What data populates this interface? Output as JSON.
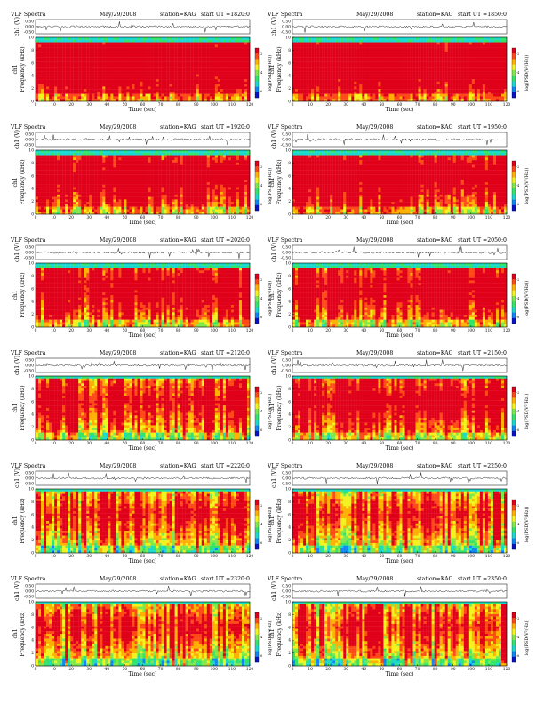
{
  "colors": {
    "spectrogram_scale": [
      "#0a12c8",
      "#0e86f5",
      "#19d9cf",
      "#34e36a",
      "#7fe84a",
      "#f2f21e",
      "#ffb000",
      "#ff4a18",
      "#e0001a"
    ],
    "trace": "#222222",
    "axes": "#000000"
  },
  "chart_data": [
    {
      "type": "heatmap",
      "header": {
        "left": "VLF Spectra",
        "date": "May/29/2008",
        "station": "station=KAG",
        "start": "start UT =1820:0"
      },
      "y_top_label": "ch1 (V)",
      "y_top_ticks": [
        "0.50",
        "0.00",
        "-0.50"
      ],
      "ylabel_prefix": "ch1",
      "ylabel": "Frequency (kHz)",
      "y_ticks": [
        "0",
        "2",
        "4",
        "6",
        "8",
        "10"
      ],
      "ylim": [
        0,
        10
      ],
      "xlabel": "Time (sec)",
      "x_ticks": [
        "0",
        "10",
        "20",
        "30",
        "40",
        "50",
        "60",
        "70",
        "80",
        "90",
        "100",
        "110",
        "120"
      ],
      "xlim": [
        0,
        120
      ],
      "colorbar_label": "log(PSD(V²/Hz))",
      "colorbar_ticks": [
        "-2",
        "-4",
        "-6"
      ],
      "activity": 0.85,
      "upper_cutoff_khz": 9.3
    },
    {
      "type": "heatmap",
      "header": {
        "left": "VLF Spectra",
        "date": "May/29/2008",
        "station": "station=KAG",
        "start": "start UT =1850:0"
      },
      "y_top_label": "ch1 (V)",
      "y_top_ticks": [
        "0.50",
        "0.00",
        "-0.50"
      ],
      "ylabel_prefix": "ch1",
      "ylabel": "Frequency (kHz)",
      "y_ticks": [
        "0",
        "2",
        "4",
        "6",
        "8",
        "10"
      ],
      "ylim": [
        0,
        10
      ],
      "xlabel": "Time (sec)",
      "x_ticks": [
        "0",
        "10",
        "20",
        "30",
        "40",
        "50",
        "60",
        "70",
        "80",
        "90",
        "100",
        "110",
        "120"
      ],
      "xlim": [
        0,
        120
      ],
      "colorbar_label": "log(PSD(V²/Hz))",
      "colorbar_ticks": [
        "-2",
        "-4",
        "-6"
      ],
      "activity": 0.85,
      "upper_cutoff_khz": 9.3
    },
    {
      "type": "heatmap",
      "header": {
        "left": "VLF Spectra",
        "date": "May/29/2008",
        "station": "station=KAG",
        "start": "start UT =1920:0"
      },
      "y_top_label": "ch1 (V)",
      "y_top_ticks": [
        "0.50",
        "0.00",
        "-0.50"
      ],
      "ylabel_prefix": "ch1",
      "ylabel": "Frequency (kHz)",
      "y_ticks": [
        "0",
        "2",
        "4",
        "6",
        "8",
        "10"
      ],
      "ylim": [
        0,
        10
      ],
      "xlabel": "Time (sec)",
      "x_ticks": [
        "0",
        "10",
        "20",
        "30",
        "40",
        "50",
        "60",
        "70",
        "80",
        "90",
        "100",
        "110",
        "120"
      ],
      "xlim": [
        0,
        120
      ],
      "colorbar_label": "log(PSD(V²/Hz))",
      "colorbar_ticks": [
        "-2",
        "-4",
        "-6"
      ],
      "activity": 0.72,
      "upper_cutoff_khz": 9.3
    },
    {
      "type": "heatmap",
      "header": {
        "left": "VLF Spectra",
        "date": "May/29/2008",
        "station": "station=KAG",
        "start": "start UT =1950:0"
      },
      "y_top_label": "ch1 (V)",
      "y_top_ticks": [
        "0.50",
        "0.00",
        "-0.50"
      ],
      "ylabel_prefix": "ch1",
      "ylabel": "Frequency (kHz)",
      "y_ticks": [
        "0",
        "2",
        "4",
        "6",
        "8",
        "10"
      ],
      "ylim": [
        0,
        10
      ],
      "xlabel": "Time (sec)",
      "x_ticks": [
        "0",
        "10",
        "20",
        "30",
        "40",
        "50",
        "60",
        "70",
        "80",
        "90",
        "100",
        "110",
        "120"
      ],
      "xlim": [
        0,
        120
      ],
      "colorbar_label": "log(PSD(V²/Hz))",
      "colorbar_ticks": [
        "-2",
        "-4",
        "-6"
      ],
      "activity": 0.72,
      "upper_cutoff_khz": 9.3
    },
    {
      "type": "heatmap",
      "header": {
        "left": "VLF Spectra",
        "date": "May/29/2008",
        "station": "station=KAG",
        "start": "start UT =2020:0"
      },
      "y_top_label": "ch1 (V)",
      "y_top_ticks": [
        "0.50",
        "0.00",
        "-0.50"
      ],
      "ylabel_prefix": "ch1",
      "ylabel": "Frequency (kHz)",
      "y_ticks": [
        "0",
        "2",
        "4",
        "6",
        "8",
        "10"
      ],
      "ylim": [
        0,
        10
      ],
      "xlabel": "Time (sec)",
      "x_ticks": [
        "0",
        "10",
        "20",
        "30",
        "40",
        "50",
        "60",
        "70",
        "80",
        "90",
        "100",
        "110",
        "120"
      ],
      "xlim": [
        0,
        120
      ],
      "colorbar_label": "log(PSD(V²/Hz))",
      "colorbar_ticks": [
        "-2",
        "-4",
        "-6"
      ],
      "activity": 0.62,
      "upper_cutoff_khz": 9.3
    },
    {
      "type": "heatmap",
      "header": {
        "left": "VLF Spectra",
        "date": "May/29/2008",
        "station": "station=KAG",
        "start": "start UT =2050:0"
      },
      "y_top_label": "ch1 (V)",
      "y_top_ticks": [
        "0.50",
        "0.00",
        "-0.50"
      ],
      "ylabel_prefix": "ch1",
      "ylabel": "Frequency (kHz)",
      "y_ticks": [
        "0",
        "2",
        "4",
        "6",
        "8",
        "10"
      ],
      "ylim": [
        0,
        10
      ],
      "xlabel": "Time (sec)",
      "x_ticks": [
        "0",
        "10",
        "20",
        "30",
        "40",
        "50",
        "60",
        "70",
        "80",
        "90",
        "100",
        "110",
        "120"
      ],
      "xlim": [
        0,
        120
      ],
      "colorbar_label": "log(PSD(V²/Hz))",
      "colorbar_ticks": [
        "-2",
        "-4",
        "-6"
      ],
      "activity": 0.62,
      "upper_cutoff_khz": 9.3
    },
    {
      "type": "heatmap",
      "header": {
        "left": "VLF Spectra",
        "date": "May/29/2008",
        "station": "station=KAG",
        "start": "start UT =2120:0"
      },
      "y_top_label": "ch1 (V)",
      "y_top_ticks": [
        "0.50",
        "0.00",
        "-0.50"
      ],
      "ylabel_prefix": "ch1",
      "ylabel": "Frequency (kHz)",
      "y_ticks": [
        "0",
        "2",
        "4",
        "6",
        "8",
        "10"
      ],
      "ylim": [
        0,
        10
      ],
      "xlabel": "Time (sec)",
      "x_ticks": [
        "0",
        "10",
        "20",
        "30",
        "40",
        "50",
        "60",
        "70",
        "80",
        "90",
        "100",
        "110",
        "120"
      ],
      "xlim": [
        0,
        120
      ],
      "colorbar_label": "log(PSD(V²/Hz))",
      "colorbar_ticks": [
        "-2",
        "-4",
        "-6"
      ],
      "activity": 0.5,
      "upper_cutoff_khz": 9.5
    },
    {
      "type": "heatmap",
      "header": {
        "left": "VLF Spectra",
        "date": "May/29/2008",
        "station": "station=KAG",
        "start": "start UT =2150:0"
      },
      "y_top_label": "ch1 (V)",
      "y_top_ticks": [
        "0.50",
        "0.00",
        "-0.50"
      ],
      "ylabel_prefix": "ch1",
      "ylabel": "Frequency (kHz)",
      "y_ticks": [
        "0",
        "2",
        "4",
        "6",
        "8",
        "10"
      ],
      "ylim": [
        0,
        10
      ],
      "xlabel": "Time (sec)",
      "x_ticks": [
        "0",
        "10",
        "20",
        "30",
        "40",
        "50",
        "60",
        "70",
        "80",
        "90",
        "100",
        "110",
        "120"
      ],
      "xlim": [
        0,
        120
      ],
      "colorbar_label": "log(PSD(V²/Hz))",
      "colorbar_ticks": [
        "-2",
        "-4",
        "-6"
      ],
      "activity": 0.55,
      "upper_cutoff_khz": 9.5
    },
    {
      "type": "heatmap",
      "header": {
        "left": "VLF Spectra",
        "date": "May/29/2008",
        "station": "station=KAG",
        "start": "start UT =2220:0"
      },
      "y_top_label": "ch1 (V)",
      "y_top_ticks": [
        "0.50",
        "0.00",
        "-0.50"
      ],
      "ylabel_prefix": "ch1",
      "ylabel": "Frequency (kHz)",
      "y_ticks": [
        "0",
        "2",
        "4",
        "6",
        "8",
        "10"
      ],
      "ylim": [
        0,
        10
      ],
      "xlabel": "Time (sec)",
      "x_ticks": [
        "0",
        "10",
        "20",
        "30",
        "40",
        "50",
        "60",
        "70",
        "80",
        "90",
        "100",
        "110",
        "120"
      ],
      "xlim": [
        0,
        120
      ],
      "colorbar_label": "log(PSD(V²/Hz))",
      "colorbar_ticks": [
        "-2",
        "-4",
        "-6"
      ],
      "activity": 0.35,
      "upper_cutoff_khz": 9.6
    },
    {
      "type": "heatmap",
      "header": {
        "left": "VLF Spectra",
        "date": "May/29/2008",
        "station": "station=KAG",
        "start": "start UT =2250:0"
      },
      "y_top_label": "ch1 (V)",
      "y_top_ticks": [
        "0.50",
        "0.00",
        "-0.50"
      ],
      "ylabel_prefix": "ch1",
      "ylabel": "Frequency (kHz)",
      "y_ticks": [
        "0",
        "2",
        "4",
        "6",
        "8",
        "10"
      ],
      "ylim": [
        0,
        10
      ],
      "xlabel": "Time (sec)",
      "x_ticks": [
        "0",
        "10",
        "20",
        "30",
        "40",
        "50",
        "60",
        "70",
        "80",
        "90",
        "100",
        "110",
        "120"
      ],
      "xlim": [
        0,
        120
      ],
      "colorbar_label": "log(PSD(V²/Hz))",
      "colorbar_ticks": [
        "-2",
        "-4",
        "-6"
      ],
      "activity": 0.3,
      "upper_cutoff_khz": 9.6
    },
    {
      "type": "heatmap",
      "header": {
        "left": "VLF Spectra",
        "date": "May/29/2008",
        "station": "station=KAG",
        "start": "start UT =2320:0"
      },
      "y_top_label": "ch1 (V)",
      "y_top_ticks": [
        "0.50",
        "0.00",
        "-0.50"
      ],
      "ylabel_prefix": "ch1",
      "ylabel": "Frequency (kHz)",
      "y_ticks": [
        "0",
        "2",
        "4",
        "6",
        "8",
        "10"
      ],
      "ylim": [
        0,
        10
      ],
      "xlabel": "Time (sec)",
      "x_ticks": [
        "0",
        "10",
        "20",
        "30",
        "40",
        "50",
        "60",
        "70",
        "80",
        "90",
        "100",
        "110",
        "120"
      ],
      "xlim": [
        0,
        120
      ],
      "colorbar_label": "log(PSD(V²/Hz))",
      "colorbar_ticks": [
        "-2",
        "-4",
        "-6"
      ],
      "activity": 0.25,
      "upper_cutoff_khz": 9.6
    },
    {
      "type": "heatmap",
      "header": {
        "left": "VLF Spectra",
        "date": "May/29/2008",
        "station": "station=KAG",
        "start": "start UT =2350:0"
      },
      "y_top_label": "ch1 (V)",
      "y_top_ticks": [
        "0.50",
        "0.00",
        "-0.50"
      ],
      "ylabel_prefix": "ch1",
      "ylabel": "Frequency (kHz)",
      "y_ticks": [
        "0",
        "2",
        "4",
        "6",
        "8",
        "10"
      ],
      "ylim": [
        0,
        10
      ],
      "xlabel": "Time (sec)",
      "x_ticks": [
        "0",
        "10",
        "20",
        "30",
        "40",
        "50",
        "60",
        "70",
        "80",
        "90",
        "100",
        "110",
        "120"
      ],
      "xlim": [
        0,
        120
      ],
      "colorbar_label": "log(PSD(V²/Hz))",
      "colorbar_ticks": [
        "-2",
        "-4",
        "-6"
      ],
      "activity": 0.3,
      "upper_cutoff_khz": 9.6
    }
  ]
}
